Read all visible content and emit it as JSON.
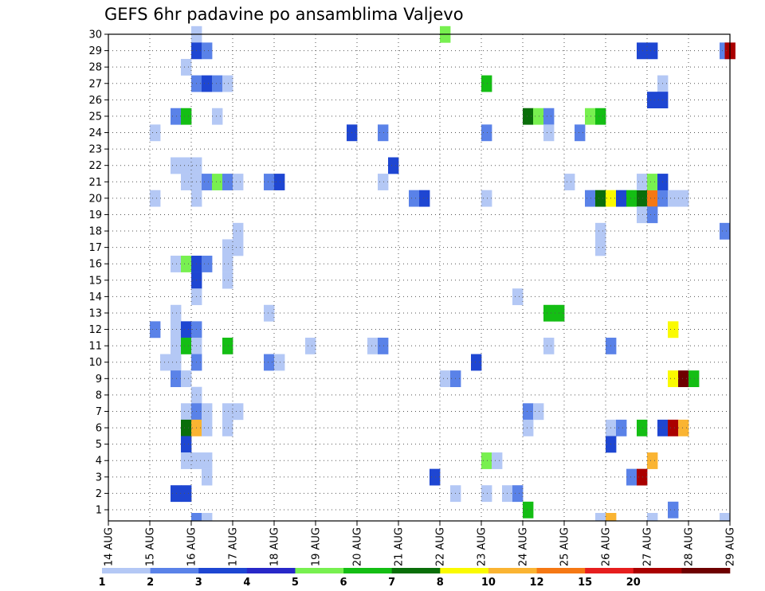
{
  "chart_data": {
    "type": "heatmap",
    "title": "GEFS 6hr padavine po ansamblima Valjevo",
    "xlabel": "",
    "ylabel": "",
    "x_ticks": [
      "14 AUG",
      "15 AUG",
      "16 AUG",
      "17 AUG",
      "18 AUG",
      "19 AUG",
      "20 AUG",
      "21 AUG",
      "22 AUG",
      "23 AUG",
      "24 AUG",
      "25 AUG",
      "26 AUG",
      "27 AUG",
      "28 AUG",
      "29 AUG"
    ],
    "y_ticks": [
      "1",
      "2",
      "3",
      "4",
      "5",
      "6",
      "7",
      "8",
      "9",
      "10",
      "11",
      "12",
      "13",
      "14",
      "15",
      "16",
      "17",
      "18",
      "19",
      "20",
      "21",
      "22",
      "23",
      "24",
      "25",
      "26",
      "27",
      "28",
      "29",
      "30"
    ],
    "xlim": [
      0,
      60
    ],
    "ylim": [
      0,
      30
    ],
    "grid": true,
    "colorbar": {
      "labels": [
        "1",
        "2",
        "3",
        "4",
        "5",
        "6",
        "7",
        "8",
        "10",
        "12",
        "15",
        "20"
      ],
      "colors": [
        "#b4c8f5",
        "#5a82e8",
        "#1e46d2",
        "#2828c8",
        "#78f050",
        "#14be14",
        "#0a6e0a",
        "#fafa00",
        "#fab432",
        "#f57814",
        "#e61e1e",
        "#aa0000",
        "#6e0000"
      ]
    },
    "cells": [
      {
        "x": 8,
        "y": 30,
        "c": 1
      },
      {
        "x": 8,
        "y": 29,
        "c": 3
      },
      {
        "x": 9,
        "y": 29,
        "c": 2
      },
      {
        "x": 7,
        "y": 28,
        "c": 1
      },
      {
        "x": 8,
        "y": 27,
        "c": 2
      },
      {
        "x": 9,
        "y": 27,
        "c": 3
      },
      {
        "x": 10,
        "y": 27,
        "c": 2
      },
      {
        "x": 11,
        "y": 27,
        "c": 1
      },
      {
        "x": 6,
        "y": 25,
        "c": 2
      },
      {
        "x": 7,
        "y": 25,
        "c": 6
      },
      {
        "x": 10,
        "y": 25,
        "c": 1
      },
      {
        "x": 4,
        "y": 24,
        "c": 1
      },
      {
        "x": 6,
        "y": 22,
        "c": 1
      },
      {
        "x": 7,
        "y": 22,
        "c": 1
      },
      {
        "x": 8,
        "y": 22,
        "c": 1
      },
      {
        "x": 7,
        "y": 21,
        "c": 1
      },
      {
        "x": 8,
        "y": 21,
        "c": 1
      },
      {
        "x": 9,
        "y": 21,
        "c": 2
      },
      {
        "x": 10,
        "y": 21,
        "c": 5
      },
      {
        "x": 11,
        "y": 21,
        "c": 2
      },
      {
        "x": 12,
        "y": 21,
        "c": 1
      },
      {
        "x": 4,
        "y": 20,
        "c": 1
      },
      {
        "x": 8,
        "y": 20,
        "c": 1
      },
      {
        "x": 12,
        "y": 18,
        "c": 1
      },
      {
        "x": 11,
        "y": 17,
        "c": 1
      },
      {
        "x": 12,
        "y": 17,
        "c": 1
      },
      {
        "x": 6,
        "y": 16,
        "c": 1
      },
      {
        "x": 7,
        "y": 16,
        "c": 5
      },
      {
        "x": 8,
        "y": 16,
        "c": 3
      },
      {
        "x": 9,
        "y": 16,
        "c": 2
      },
      {
        "x": 11,
        "y": 16,
        "c": 1
      },
      {
        "x": 11,
        "y": 15,
        "c": 1
      },
      {
        "x": 8,
        "y": 15,
        "c": 3
      },
      {
        "x": 8,
        "y": 14,
        "c": 1
      },
      {
        "x": 6,
        "y": 13,
        "c": 1
      },
      {
        "x": 4,
        "y": 12,
        "c": 2
      },
      {
        "x": 6,
        "y": 12,
        "c": 1
      },
      {
        "x": 7,
        "y": 12,
        "c": 3
      },
      {
        "x": 8,
        "y": 12,
        "c": 2
      },
      {
        "x": 6,
        "y": 11,
        "c": 1
      },
      {
        "x": 7,
        "y": 11,
        "c": 6
      },
      {
        "x": 8,
        "y": 11,
        "c": 1
      },
      {
        "x": 11,
        "y": 11,
        "c": 6
      },
      {
        "x": 5,
        "y": 10,
        "c": 1
      },
      {
        "x": 6,
        "y": 10,
        "c": 1
      },
      {
        "x": 8,
        "y": 10,
        "c": 2
      },
      {
        "x": 6,
        "y": 9,
        "c": 2
      },
      {
        "x": 7,
        "y": 9,
        "c": 1
      },
      {
        "x": 8,
        "y": 8,
        "c": 1
      },
      {
        "x": 7,
        "y": 7,
        "c": 1
      },
      {
        "x": 8,
        "y": 7,
        "c": 2
      },
      {
        "x": 9,
        "y": 7,
        "c": 1
      },
      {
        "x": 11,
        "y": 7,
        "c": 1
      },
      {
        "x": 12,
        "y": 7,
        "c": 1
      },
      {
        "x": 7,
        "y": 6,
        "c": 7
      },
      {
        "x": 8,
        "y": 6,
        "c": 9
      },
      {
        "x": 9,
        "y": 6,
        "c": 1
      },
      {
        "x": 11,
        "y": 6,
        "c": 1
      },
      {
        "x": 7,
        "y": 5,
        "c": 3
      },
      {
        "x": 7,
        "y": 4,
        "c": 1
      },
      {
        "x": 8,
        "y": 4,
        "c": 1
      },
      {
        "x": 9,
        "y": 4,
        "c": 1
      },
      {
        "x": 9,
        "y": 3,
        "c": 1
      },
      {
        "x": 6,
        "y": 2,
        "c": 3
      },
      {
        "x": 7,
        "y": 2,
        "c": 3
      },
      {
        "x": 8,
        "y": 0,
        "c": 2
      },
      {
        "x": 9,
        "y": 0,
        "c": 1
      },
      {
        "x": 15,
        "y": 21,
        "c": 2
      },
      {
        "x": 16,
        "y": 21,
        "c": 3
      },
      {
        "x": 15,
        "y": 13,
        "c": 1
      },
      {
        "x": 15,
        "y": 10,
        "c": 2
      },
      {
        "x": 16,
        "y": 10,
        "c": 1
      },
      {
        "x": 19,
        "y": 11,
        "c": 1
      },
      {
        "x": 23,
        "y": 24,
        "c": 3
      },
      {
        "x": 26,
        "y": 24,
        "c": 2
      },
      {
        "x": 27,
        "y": 22,
        "c": 3
      },
      {
        "x": 26,
        "y": 21,
        "c": 1
      },
      {
        "x": 25,
        "y": 11,
        "c": 1
      },
      {
        "x": 26,
        "y": 11,
        "c": 2
      },
      {
        "x": 29,
        "y": 20,
        "c": 2
      },
      {
        "x": 30,
        "y": 20,
        "c": 3
      },
      {
        "x": 32,
        "y": 30,
        "c": 5
      },
      {
        "x": 32,
        "y": 9,
        "c": 1
      },
      {
        "x": 33,
        "y": 9,
        "c": 2
      },
      {
        "x": 31,
        "y": 3,
        "c": 3
      },
      {
        "x": 33,
        "y": 2,
        "c": 1
      },
      {
        "x": 36,
        "y": 2,
        "c": 1
      },
      {
        "x": 38,
        "y": 2,
        "c": 1
      },
      {
        "x": 39,
        "y": 2,
        "c": 2
      },
      {
        "x": 35,
        "y": 10,
        "c": 3
      },
      {
        "x": 36,
        "y": 27,
        "c": 6
      },
      {
        "x": 36,
        "y": 24,
        "c": 2
      },
      {
        "x": 36,
        "y": 20,
        "c": 1
      },
      {
        "x": 36,
        "y": 4,
        "c": 5
      },
      {
        "x": 37,
        "y": 4,
        "c": 1
      },
      {
        "x": 39,
        "y": 14,
        "c": 1
      },
      {
        "x": 40,
        "y": 1,
        "c": 6
      },
      {
        "x": 40,
        "y": 25,
        "c": 7
      },
      {
        "x": 41,
        "y": 25,
        "c": 5
      },
      {
        "x": 40,
        "y": 7,
        "c": 2
      },
      {
        "x": 41,
        "y": 7,
        "c": 1
      },
      {
        "x": 40,
        "y": 6,
        "c": 1
      },
      {
        "x": 42,
        "y": 13,
        "c": 6
      },
      {
        "x": 43,
        "y": 13,
        "c": 6
      },
      {
        "x": 42,
        "y": 25,
        "c": 2
      },
      {
        "x": 42,
        "y": 24,
        "c": 1
      },
      {
        "x": 42,
        "y": 11,
        "c": 1
      },
      {
        "x": 44,
        "y": 21,
        "c": 1
      },
      {
        "x": 45,
        "y": 24,
        "c": 2
      },
      {
        "x": 46,
        "y": 25,
        "c": 5
      },
      {
        "x": 47,
        "y": 25,
        "c": 6
      },
      {
        "x": 46,
        "y": 20,
        "c": 2
      },
      {
        "x": 47,
        "y": 20,
        "c": 7
      },
      {
        "x": 48,
        "y": 20,
        "c": 8
      },
      {
        "x": 49,
        "y": 20,
        "c": 3
      },
      {
        "x": 50,
        "y": 20,
        "c": 6
      },
      {
        "x": 51,
        "y": 20,
        "c": 7
      },
      {
        "x": 52,
        "y": 20,
        "c": 10
      },
      {
        "x": 53,
        "y": 20,
        "c": 2
      },
      {
        "x": 54,
        "y": 20,
        "c": 1
      },
      {
        "x": 55,
        "y": 20,
        "c": 1
      },
      {
        "x": 51,
        "y": 21,
        "c": 1
      },
      {
        "x": 52,
        "y": 21,
        "c": 5
      },
      {
        "x": 53,
        "y": 21,
        "c": 3
      },
      {
        "x": 51,
        "y": 19,
        "c": 1
      },
      {
        "x": 52,
        "y": 19,
        "c": 2
      },
      {
        "x": 47,
        "y": 18,
        "c": 1
      },
      {
        "x": 47,
        "y": 17,
        "c": 1
      },
      {
        "x": 59,
        "y": 18,
        "c": 2
      },
      {
        "x": 48,
        "y": 11,
        "c": 2
      },
      {
        "x": 48,
        "y": 6,
        "c": 1
      },
      {
        "x": 49,
        "y": 6,
        "c": 2
      },
      {
        "x": 51,
        "y": 6,
        "c": 6
      },
      {
        "x": 53,
        "y": 6,
        "c": 3
      },
      {
        "x": 54,
        "y": 6,
        "c": 12
      },
      {
        "x": 55,
        "y": 6,
        "c": 9
      },
      {
        "x": 48,
        "y": 5,
        "c": 3
      },
      {
        "x": 51,
        "y": 29,
        "c": 3
      },
      {
        "x": 52,
        "y": 29,
        "c": 3
      },
      {
        "x": 59,
        "y": 29,
        "c": 2
      },
      {
        "x": 59.5,
        "y": 29,
        "c": 12
      },
      {
        "x": 53,
        "y": 27,
        "c": 1
      },
      {
        "x": 52,
        "y": 26,
        "c": 3
      },
      {
        "x": 53,
        "y": 26,
        "c": 3
      },
      {
        "x": 54,
        "y": 12,
        "c": 8
      },
      {
        "x": 54,
        "y": 9,
        "c": 8
      },
      {
        "x": 55,
        "y": 9,
        "c": 13
      },
      {
        "x": 56,
        "y": 9,
        "c": 6
      },
      {
        "x": 50,
        "y": 3,
        "c": 2
      },
      {
        "x": 51,
        "y": 3,
        "c": 12
      },
      {
        "x": 52,
        "y": 4,
        "c": 9
      },
      {
        "x": 54,
        "y": 1,
        "c": 2
      },
      {
        "x": 47,
        "y": 0,
        "c": 1
      },
      {
        "x": 48,
        "y": 0,
        "c": 9
      },
      {
        "x": 52,
        "y": 0,
        "c": 1
      },
      {
        "x": 59,
        "y": 0,
        "c": 1
      }
    ]
  }
}
